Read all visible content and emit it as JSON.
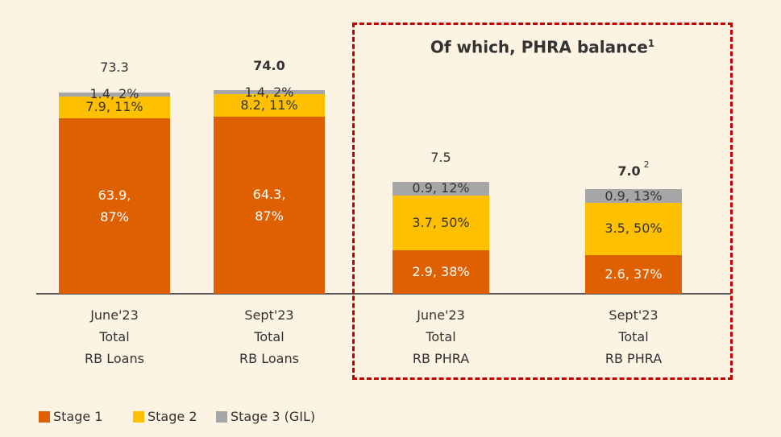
{
  "chart_data": [
    {
      "type": "bar",
      "stacked": true,
      "categories": [
        [
          "June'23",
          "Total",
          "RB Loans"
        ],
        [
          "Sept'23",
          "Total",
          "RB Loans"
        ]
      ],
      "series": [
        {
          "name": "Stage 1",
          "color": "#df6000",
          "values": [
            63.9,
            64.3
          ],
          "value_labels": [
            "63.9, 87%",
            "64.3, 87%"
          ]
        },
        {
          "name": "Stage 2",
          "color": "#ffc000",
          "values": [
            7.9,
            8.2
          ],
          "value_labels": [
            "7.9, 11%",
            "8.2, 11%"
          ]
        },
        {
          "name": "Stage 3 (GIL)",
          "color": "#a6a6a6",
          "values": [
            1.4,
            1.4
          ],
          "value_labels": [
            "1.4, 2%",
            "1.4, 2%"
          ]
        }
      ],
      "totals": [
        73.3,
        74.0
      ],
      "total_labels": [
        "73.3",
        "74.0"
      ],
      "total_bold": [
        false,
        true
      ]
    },
    {
      "type": "bar",
      "stacked": true,
      "title": "Of which, PHRA balance",
      "title_note": "1",
      "categories": [
        [
          "June'23",
          "Total",
          "RB PHRA"
        ],
        [
          "Sept'23",
          "Total",
          "RB PHRA"
        ]
      ],
      "series": [
        {
          "color": "#df6000",
          "values": [
            2.9,
            2.6
          ],
          "value_labels": [
            "2.9, 38%",
            "2.6, 37%"
          ]
        },
        {
          "color": "#ffc000",
          "values": [
            3.7,
            3.5
          ],
          "value_labels": [
            "3.7, 50%",
            "3.5, 50%"
          ]
        },
        {
          "color": "#a6a6a6",
          "values": [
            0.9,
            0.9
          ],
          "value_labels": [
            "0.9, 12%",
            "0.9, 13%"
          ]
        }
      ],
      "totals": [
        7.5,
        7.0
      ],
      "total_labels": [
        "7.5",
        "7.0"
      ],
      "total_bold": [
        false,
        true
      ],
      "total_notes": [
        null,
        "2"
      ]
    }
  ]
}
